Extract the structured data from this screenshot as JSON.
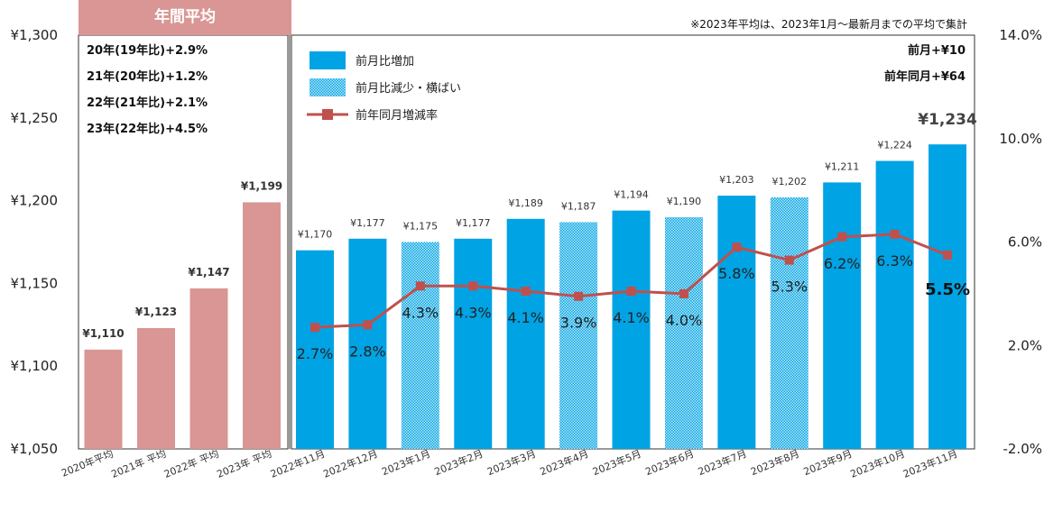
{
  "chart_data": {
    "type": "bar",
    "note": "※2023年平均は、2023年1月～最新月までの平均で集計",
    "banner": "年間平均",
    "annual_summary": [
      "20年(19年比)+2.9%",
      "21年(20年比)+1.2%",
      "22年(21年比)+2.1%",
      "23年(22年比)+4.5%"
    ],
    "monthly_summary": [
      "前月+¥10",
      "前年同月+¥64"
    ],
    "legend": [
      {
        "label": "前月比増加",
        "kind": "solid",
        "color": "#00A3E4"
      },
      {
        "label": "前月比減少・横ばい",
        "kind": "dotted",
        "color": "#00A3E4"
      },
      {
        "label": "前年同月増減率",
        "kind": "line",
        "color": "#C0504D"
      }
    ],
    "y_left": {
      "min": 1050,
      "max": 1300,
      "ticks": [
        "¥1,050",
        "¥1,100",
        "¥1,150",
        "¥1,200",
        "¥1,250",
        "¥1,300"
      ]
    },
    "y_right": {
      "min": -2.0,
      "max": 14.0,
      "ticks": [
        "-2.0%",
        "2.0%",
        "6.0%",
        "10.0%",
        "14.0%"
      ]
    },
    "categories": [
      "2020年平均",
      "2021年 平均",
      "2022年 平均",
      "2023年 平均",
      "2022年11月",
      "2022年12月",
      "2023年1月",
      "2023年2月",
      "2023年3月",
      "2023年4月",
      "2023年5月",
      "2023年6月",
      "2023年7月",
      "2023年8月",
      "2023年9月",
      "2023年10月",
      "2023年11月"
    ],
    "series": [
      {
        "values": [
          1110,
          1123,
          1147,
          1199,
          1170,
          1177,
          1175,
          1177,
          1189,
          1187,
          1194,
          1190,
          1203,
          1202,
          1211,
          1224,
          1234
        ],
        "value_labels": [
          "¥1,110",
          "¥1,123",
          "¥1,147",
          "¥1,199",
          "¥1,170",
          "¥1,177",
          "¥1,175",
          "¥1,177",
          "¥1,189",
          "¥1,187",
          "¥1,194",
          "¥1,190",
          "¥1,203",
          "¥1,202",
          "¥1,211",
          "¥1,224",
          "¥1,234"
        ],
        "bar_style": [
          "annual",
          "annual",
          "annual",
          "annual",
          "solid",
          "solid",
          "dotted",
          "solid",
          "solid",
          "dotted",
          "solid",
          "dotted",
          "solid",
          "dotted",
          "solid",
          "solid",
          "solid"
        ]
      },
      {
        "name": "前年同月増減率",
        "axis": "right",
        "values": [
          null,
          null,
          null,
          null,
          2.7,
          2.8,
          4.3,
          4.3,
          4.1,
          3.9,
          4.1,
          4.0,
          5.8,
          5.3,
          6.2,
          6.3,
          5.5
        ],
        "value_labels": [
          "",
          "",
          "",
          "",
          "2.7%",
          "2.8%",
          "4.3%",
          "4.3%",
          "4.1%",
          "3.9%",
          "4.1%",
          "4.0%",
          "5.8%",
          "5.3%",
          "6.2%",
          "6.3%",
          "5.5%"
        ]
      }
    ],
    "colors": {
      "annual": "#D99694",
      "bar": "#00A3E4",
      "line": "#C0504D"
    }
  }
}
